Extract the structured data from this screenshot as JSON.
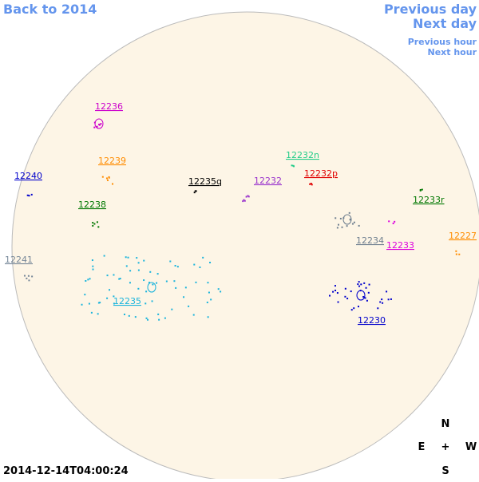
{
  "navigation": {
    "back": "Back to 2014",
    "previous_day": "Previous day",
    "next_day": "Next day",
    "previous_hour": "Previous hour",
    "next_hour": "Next hour"
  },
  "regions": [
    {
      "label": "12236",
      "color": "#cc00cc"
    },
    {
      "label": "12239",
      "color": "#ff8c00"
    },
    {
      "label": "12240",
      "color": "#0000cc"
    },
    {
      "label": "12235q",
      "color": "#000000"
    },
    {
      "label": "12232",
      "color": "#9932cc"
    },
    {
      "label": "12232n",
      "color": "#22cc88"
    },
    {
      "label": "12232p",
      "color": "#e00000"
    },
    {
      "label": "12233r",
      "color": "#007700"
    },
    {
      "label": "12238",
      "color": "#007700"
    },
    {
      "label": "12234",
      "color": "#708090"
    },
    {
      "label": "12233",
      "color": "#dd00dd"
    },
    {
      "label": "12227",
      "color": "#ff8c00"
    },
    {
      "label": "12241",
      "color": "#778899"
    },
    {
      "label": "12235",
      "color": "#1ab4dc"
    },
    {
      "label": "12230",
      "color": "#0000cc"
    }
  ],
  "compass": {
    "north": "N",
    "east": "E",
    "center": "+",
    "west": "W",
    "south": "S"
  },
  "timestamp": "2014-12-14T04:00:24"
}
